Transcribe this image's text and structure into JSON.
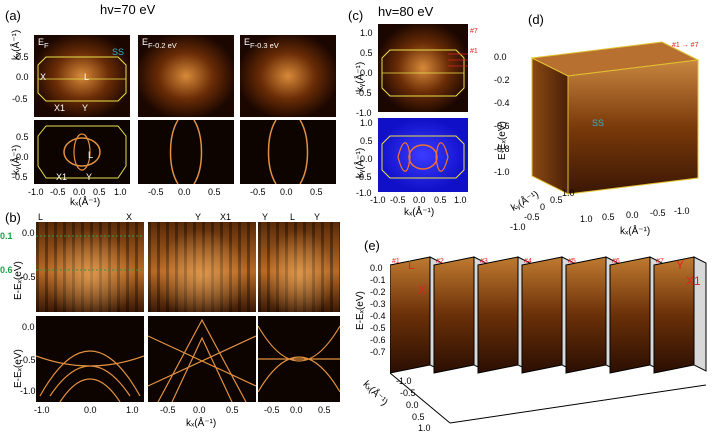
{
  "panel_a": {
    "label": "(a)",
    "hv": "hv=70 eV",
    "sub_titles": [
      "Eₓ",
      "Eₓ-0.2 eV",
      "Eₓ-0.3 eV"
    ],
    "ef_labels": [
      "E",
      "F",
      "E",
      "F-0.2 eV",
      "E",
      "F-0.3 eV"
    ],
    "points": [
      "X",
      "L",
      "X1",
      "Y",
      "X1",
      "Y",
      "L"
    ],
    "ss": "SS",
    "ylabel": "kᵧ(Å⁻¹)",
    "xlabel": "kₓ(Å⁻¹)",
    "yticks_top": [
      "0.5",
      "0.0",
      "-0.5"
    ],
    "yticks_bottom": [
      "0.5",
      "0.0",
      "-0.5"
    ],
    "xticks": [
      "-1.0",
      "-0.5",
      "0.0",
      "0.5",
      "1.0",
      "-0.5",
      "0.0",
      "0.5",
      "-0.5",
      "0.0",
      "0.5"
    ]
  },
  "panel_b": {
    "label": "(b)",
    "top_points": [
      "L",
      "X",
      "Y",
      "X1",
      "Y",
      "L",
      "Y"
    ],
    "markers": [
      "0.1",
      "0.6"
    ],
    "ylabel": "E-Eₓ(eV)",
    "yticks_top": [
      "0.0",
      "-0.5"
    ],
    "yticks_bottom": [
      "0.0",
      "-0.5",
      "-1.0"
    ],
    "xticks": [
      "-1.0",
      "0.0",
      "1.0",
      "-0.5",
      "0.0",
      "0.5",
      "-0.5",
      "0.0",
      "0.5"
    ],
    "xlabel": "kₓ(Å⁻¹)"
  },
  "panel_c": {
    "label": "(c)",
    "hv": "hv=80 eV",
    "ylabel": "kᵧ(Å⁻¹)",
    "xlabel": "kₓ(Å⁻¹)",
    "yticks_top": [
      "1.0",
      "0.5",
      "0.0",
      "-0.5",
      "-1.0"
    ],
    "yticks_bottom": [
      "1.0",
      "0.5",
      "0.0",
      "-0.5",
      "-1.0"
    ],
    "xticks": [
      "-1.0",
      "-0.5",
      "0.0",
      "0.5",
      "1.0"
    ],
    "cut_labels": [
      "#7",
      "#1"
    ]
  },
  "panel_d": {
    "label": "(d)",
    "ylabel": "E-Eₓ(eV)",
    "yticks": [
      "0.0",
      "-0.2",
      "-0.4",
      "-0.6",
      "-0.8",
      "-1.0"
    ],
    "ky_label": "kᵧ(Å⁻¹)",
    "kx_label": "kₓ(Å⁻¹)",
    "ky_ticks": [
      "-1.0",
      "-0.5",
      "0",
      "0.5",
      "1.0"
    ],
    "kx_ticks": [
      "1.0",
      "0.5",
      "0.0",
      "-0.5",
      "-1.0"
    ],
    "cuts": "#1 → #7",
    "ss": "SS"
  },
  "panel_e": {
    "label": "(e)",
    "ylabel": "E-Eₓ(eV)",
    "yticks": [
      "0.0",
      "-0.1",
      "-0.2",
      "-0.3",
      "-0.4",
      "-0.5",
      "-0.6",
      "-0.7"
    ],
    "kx_label": "kₓ(Å⁻¹)",
    "kx_ticks": [
      "-1.0",
      "-0.5",
      "0.0",
      "0.5",
      "1.0"
    ],
    "cut_ids": [
      "#1",
      "#2",
      "#3",
      "#4",
      "#5",
      "#6",
      "#7"
    ],
    "left_points": [
      "L",
      "X"
    ],
    "right_points": [
      "Y",
      "X1"
    ]
  },
  "colors": {
    "accent": "#d22",
    "cyan": "#2bb5d6",
    "green": "#1aa14a",
    "yellow": "#e8e04a"
  }
}
